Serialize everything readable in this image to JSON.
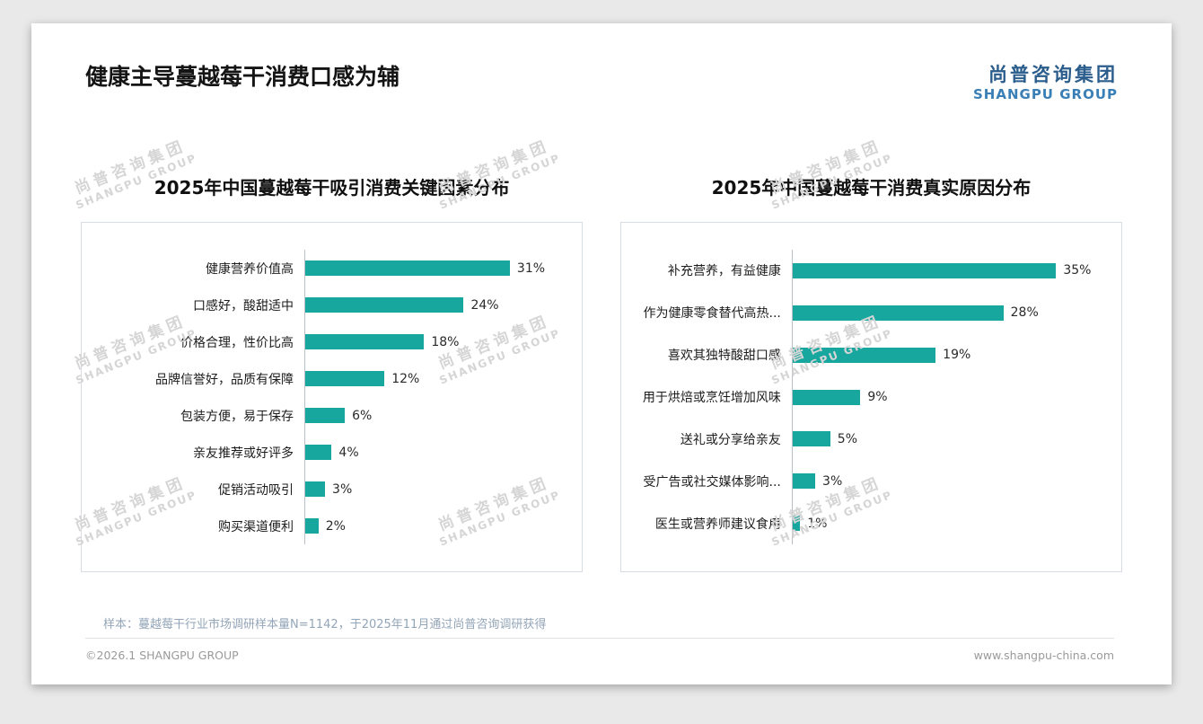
{
  "page": {
    "title": "健康主导蔓越莓干消费口感为辅",
    "logo": {
      "cn": "尚普咨询集团",
      "en": "SHANGPU GROUP"
    },
    "watermark": {
      "cn": "尚普咨询集团",
      "en": "SHANGPU GROUP"
    },
    "footnote": "样本：蔓越莓干行业市场调研样本量N=1142，于2025年11月通过尚普咨询调研获得",
    "footer_left": "©2026.1 SHANGPU GROUP",
    "footer_right": "www.shangpu-china.com"
  },
  "colors": {
    "bar": "#18a79f",
    "logo_cn_blue": "#2a5d8c",
    "logo_en_blue": "#3a7fb5"
  },
  "chart_data": [
    {
      "type": "bar",
      "orientation": "horizontal",
      "title": "2025年中国蔓越莓干吸引消费关键因素分布",
      "categories": [
        "健康营养价值高",
        "口感好，酸甜适中",
        "价格合理，性价比高",
        "品牌信誉好，品质有保障",
        "包装方便，易于保存",
        "亲友推荐或好评多",
        "促销活动吸引",
        "购买渠道便利"
      ],
      "values": [
        31,
        24,
        18,
        12,
        6,
        4,
        3,
        2
      ],
      "unit": "%",
      "xlim": [
        0,
        40
      ],
      "grid": false,
      "legend": false,
      "value_labels": true
    },
    {
      "type": "bar",
      "orientation": "horizontal",
      "title": "2025年中国蔓越莓干消费真实原因分布",
      "categories": [
        "补充营养，有益健康",
        "作为健康零食替代高热...",
        "喜欢其独特酸甜口感",
        "用于烘焙或烹饪增加风味",
        "送礼或分享给亲友",
        "受广告或社交媒体影响...",
        "医生或营养师建议食用"
      ],
      "values": [
        35,
        28,
        19,
        9,
        5,
        3,
        1
      ],
      "unit": "%",
      "xlim": [
        0,
        42
      ],
      "grid": false,
      "legend": false,
      "value_labels": true
    }
  ]
}
